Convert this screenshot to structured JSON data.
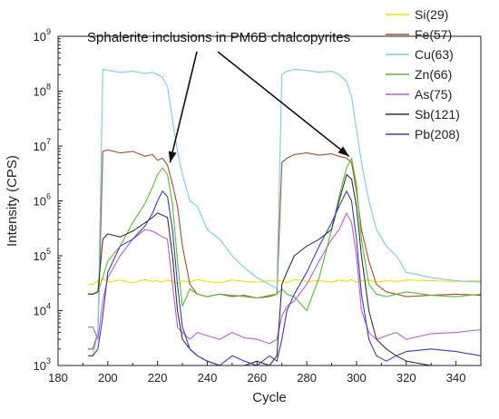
{
  "chart_data": {
    "type": "line",
    "xlabel": "Cycle",
    "ylabel": "Intensity (CPS)",
    "xlim": [
      180,
      350
    ],
    "ylim": [
      1000,
      1000000000
    ],
    "yscale": "log",
    "xticks": [
      180,
      200,
      220,
      240,
      260,
      280,
      300,
      320,
      340
    ],
    "yticks": [
      {
        "value": 1000,
        "base": "10",
        "exp": "3"
      },
      {
        "value": 10000,
        "base": "10",
        "exp": "4"
      },
      {
        "value": 100000,
        "base": "10",
        "exp": "5"
      },
      {
        "value": 1000000,
        "base": "10",
        "exp": "6"
      },
      {
        "value": 10000000,
        "base": "10",
        "exp": "7"
      },
      {
        "value": 100000000,
        "base": "10",
        "exp": "8"
      },
      {
        "value": 1000000000,
        "base": "10",
        "exp": "9"
      }
    ],
    "grid": false,
    "legend_position": "top-right",
    "annotation": {
      "text": "Sphalerite inclusions in PM6B chalcopyrites",
      "arrows_to": [
        [
          225,
          5000000
        ],
        [
          297,
          6500000
        ]
      ]
    },
    "x": [
      192,
      194,
      196,
      198,
      200,
      205,
      210,
      215,
      218,
      220,
      222,
      224,
      226,
      228,
      230,
      233,
      236,
      240,
      245,
      250,
      255,
      260,
      265,
      268,
      270,
      272,
      275,
      280,
      285,
      290,
      293,
      296,
      298,
      300,
      302,
      305,
      308,
      312,
      316,
      320,
      330,
      340,
      350
    ],
    "series": [
      {
        "name": "Si(29)",
        "color": "#e9e600",
        "values": [
          30000,
          30000,
          35000,
          38000,
          33000,
          36000,
          32000,
          37000,
          34000,
          35000,
          33000,
          36000,
          34000,
          31000,
          35000,
          33000,
          37000,
          34000,
          32000,
          36000,
          34000,
          33000,
          35000,
          34000,
          36000,
          32000,
          37000,
          34000,
          35000,
          33000,
          36000,
          34000,
          37000,
          33000,
          35000,
          36000,
          33000,
          35000,
          34000,
          36000,
          35000,
          34000,
          35000
        ]
      },
      {
        "name": "Fe(57)",
        "color": "#a0522d",
        "values": [
          2000,
          2000,
          4000,
          8000000,
          8500000,
          7500000,
          8000000,
          6500000,
          7000000,
          5500000,
          6000000,
          4500000,
          2000000,
          800000,
          150000,
          30000,
          20000,
          18000,
          20000,
          18000,
          19000,
          17000,
          18000,
          20000,
          5000000,
          6000000,
          7000000,
          7500000,
          6800000,
          7200000,
          6500000,
          6000000,
          5000000,
          1500000,
          300000,
          80000,
          30000,
          22000,
          20000,
          18000,
          19000,
          20000,
          19000
        ]
      },
      {
        "name": "Cu(63)",
        "color": "#7ec8e3",
        "values": [
          1500,
          1500,
          4000,
          250000000,
          240000000,
          220000000,
          230000000,
          210000000,
          220000000,
          200000000,
          180000000,
          120000000,
          30000000,
          8000000,
          3000000,
          1000000,
          800000,
          300000,
          200000,
          100000,
          60000,
          40000,
          30000,
          25000,
          200000000,
          230000000,
          250000000,
          240000000,
          220000000,
          230000000,
          200000000,
          150000000,
          80000000,
          20000000,
          5000000,
          1000000,
          300000,
          150000,
          100000,
          50000,
          40000,
          35000,
          33000
        ]
      },
      {
        "name": "Zn(66)",
        "color": "#5cb83c",
        "values": [
          20000,
          20000,
          22000,
          40000,
          80000,
          150000,
          400000,
          900000,
          1800000,
          3000000,
          4000000,
          3000000,
          900000,
          80000,
          12000,
          25000,
          20000,
          18000,
          20000,
          19000,
          18000,
          17000,
          19000,
          20000,
          25000,
          20000,
          18000,
          10000,
          40000,
          300000,
          1200000,
          4000000,
          6000000,
          2000000,
          200000,
          30000,
          20000,
          18000,
          20000,
          22000,
          19000,
          18000,
          20000
        ]
      },
      {
        "name": "As(75)",
        "color": "#b65fd0",
        "values": [
          5000,
          5000,
          3000,
          15000,
          40000,
          100000,
          200000,
          300000,
          280000,
          250000,
          220000,
          200000,
          30000,
          5000,
          4000,
          3000,
          4000,
          3500,
          3000,
          4000,
          3200,
          3000,
          2500,
          3000,
          8000,
          12000,
          15000,
          30000,
          80000,
          200000,
          300000,
          600000,
          400000,
          100000,
          10000,
          4000,
          3000,
          3500,
          4000,
          3000,
          3800,
          4000,
          4500
        ]
      },
      {
        "name": "Sb(121)",
        "color": "#333333",
        "values": [
          20000,
          20000,
          22000,
          200000,
          250000,
          220000,
          280000,
          400000,
          500000,
          600000,
          550000,
          500000,
          100000,
          10000,
          3000,
          2000,
          1500,
          1200,
          1000,
          1000,
          1000,
          1200,
          1000,
          1500,
          30000,
          50000,
          100000,
          150000,
          200000,
          300000,
          1000000,
          3000000,
          2500000,
          800000,
          100000,
          10000,
          3000,
          2000,
          1500,
          1200,
          1000,
          1000,
          1000
        ]
      },
      {
        "name": "Pb(208)",
        "color": "#3b3fb0",
        "values": [
          1500,
          1500,
          2000,
          8000,
          50000,
          150000,
          200000,
          350000,
          600000,
          1000000,
          1500000,
          1200000,
          300000,
          30000,
          5000,
          2000,
          1500,
          1200,
          1000,
          1500,
          1200,
          1000,
          1500,
          1200,
          3000,
          10000,
          20000,
          50000,
          150000,
          400000,
          800000,
          1500000,
          1000000,
          200000,
          20000,
          3000,
          1500,
          1200,
          1500,
          1800,
          2000,
          1800,
          1500
        ]
      }
    ]
  }
}
